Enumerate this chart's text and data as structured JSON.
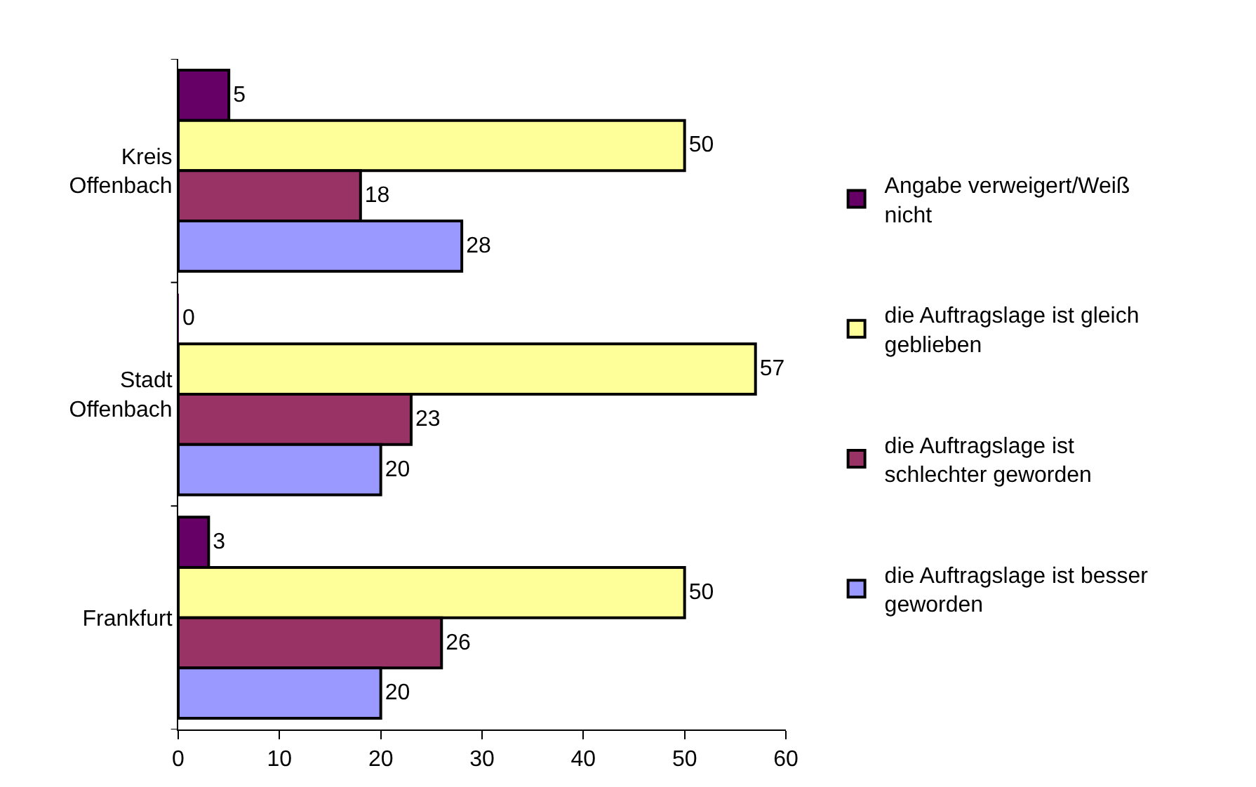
{
  "chart_data": {
    "type": "bar",
    "orientation": "horizontal",
    "categories": [
      "Kreis Offenbach",
      "Stadt Offenbach",
      "Frankfurt"
    ],
    "series": [
      {
        "name": "Angabe verweigert/Weiß nicht",
        "color": "#660066",
        "values": [
          5,
          0,
          3
        ]
      },
      {
        "name": "die Auftragslage ist gleich geblieben",
        "color": "#ffff99",
        "values": [
          50,
          57,
          50
        ]
      },
      {
        "name": "die Auftragslage ist schlechter geworden",
        "color": "#993366",
        "values": [
          18,
          23,
          26
        ]
      },
      {
        "name": "die Auftragslage ist besser geworden",
        "color": "#9999ff",
        "values": [
          28,
          20,
          20
        ]
      }
    ],
    "xlim": [
      0,
      60
    ],
    "xticks": [
      0,
      10,
      20,
      30,
      40,
      50,
      60
    ],
    "data_labels": true,
    "legend": "right"
  }
}
